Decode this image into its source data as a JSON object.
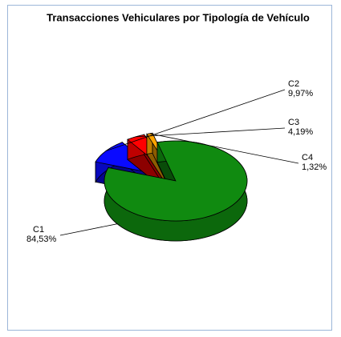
{
  "chart_data": {
    "type": "pie3d",
    "title": "Transacciones Vehiculares por Tipología de Vehículo",
    "categories": [
      "C1",
      "C2",
      "C3",
      "C4"
    ],
    "values": [
      84.53,
      9.97,
      4.19,
      1.32
    ],
    "value_labels": [
      "84,53%",
      "9,97%",
      "4,19%",
      "1,32%"
    ],
    "colors": [
      "#108a10",
      "#0a0aff",
      "#ff0000",
      "#ffa500"
    ]
  }
}
